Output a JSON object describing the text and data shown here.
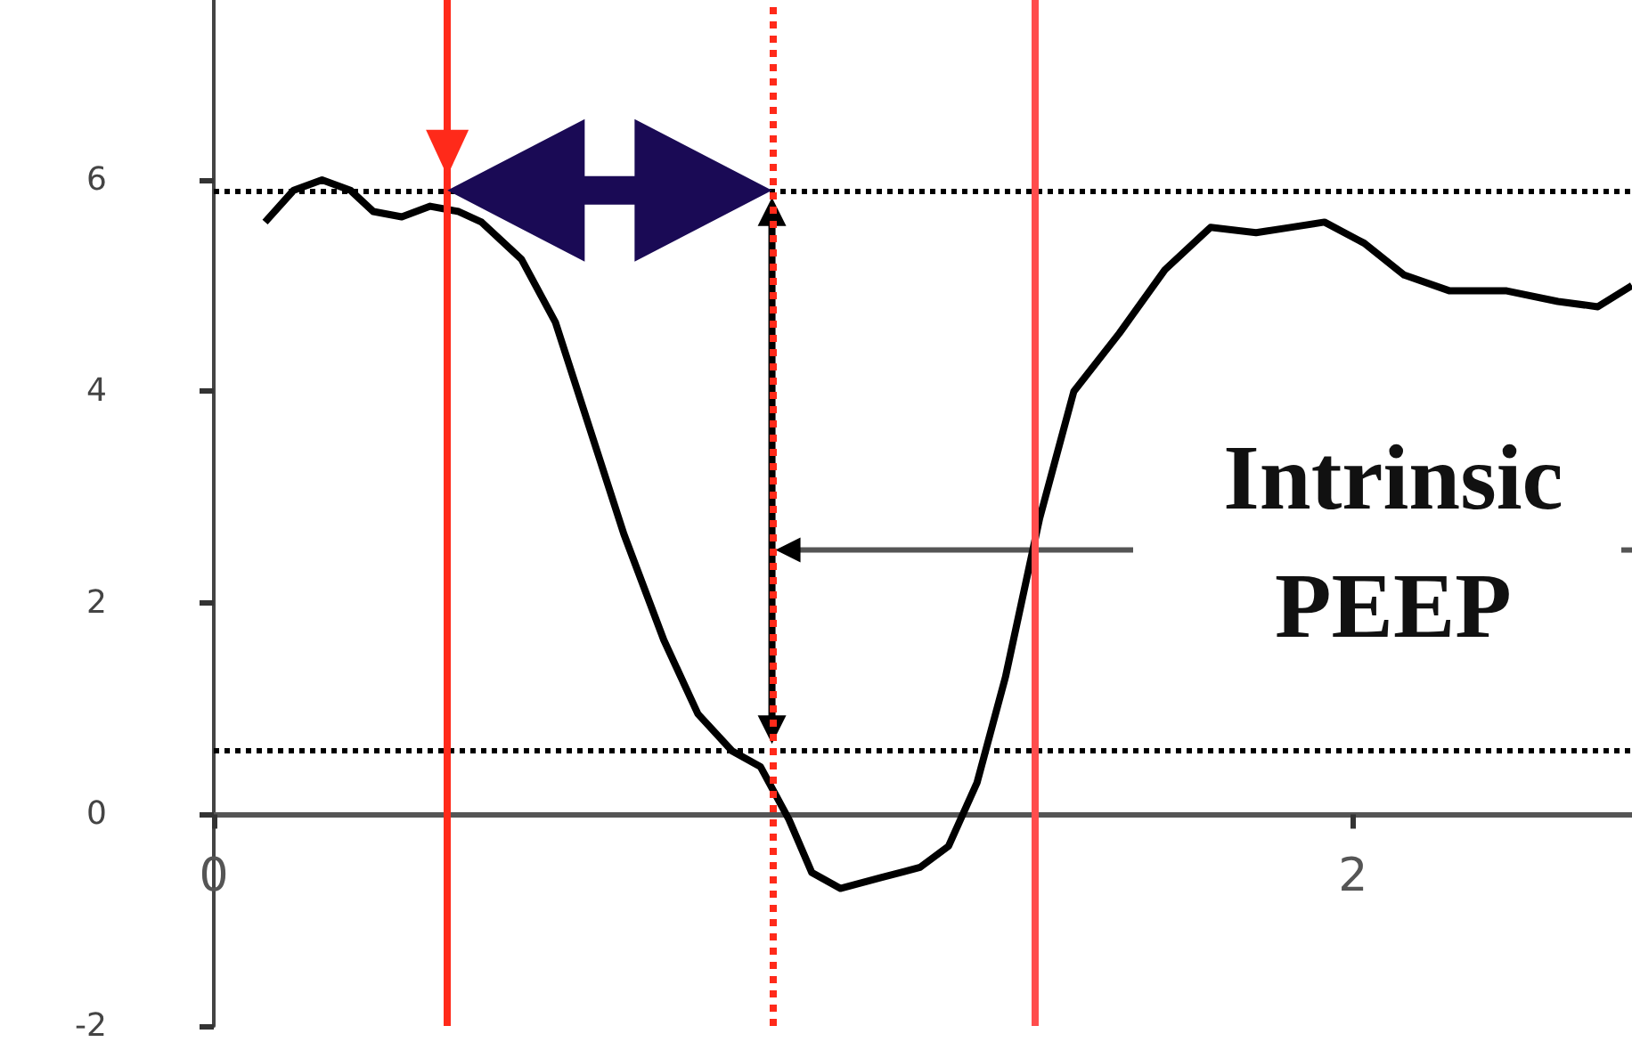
{
  "chart_data": {
    "type": "line",
    "x": [
      0.09,
      0.14,
      0.19,
      0.24,
      0.28,
      0.33,
      0.38,
      0.43,
      0.47,
      0.54,
      0.6,
      0.66,
      0.72,
      0.79,
      0.85,
      0.91,
      0.96,
      1.01,
      1.05,
      1.1,
      1.17,
      1.24,
      1.29,
      1.34,
      1.39,
      1.45,
      1.51,
      1.59,
      1.67,
      1.75,
      1.83,
      1.89,
      1.95,
      2.02,
      2.09,
      2.17,
      2.27,
      2.36,
      2.43,
      2.49
    ],
    "series": [
      {
        "color": "#000000",
        "values": [
          5.6,
          5.9,
          6.0,
          5.9,
          5.7,
          5.65,
          5.75,
          5.7,
          5.6,
          5.25,
          4.65,
          3.65,
          2.65,
          1.65,
          0.95,
          0.6,
          0.45,
          -0.05,
          -0.55,
          -0.7,
          -0.6,
          -0.5,
          -0.3,
          0.3,
          1.3,
          2.8,
          4.0,
          4.55,
          5.15,
          5.55,
          5.5,
          5.55,
          5.6,
          5.4,
          5.1,
          4.95,
          4.95,
          4.85,
          4.8,
          5.0
        ]
      }
    ],
    "xlim": [
      0,
      2.49
    ],
    "xticks": [
      0,
      2
    ],
    "ylim": [
      -2,
      7.7
    ],
    "yticks": [
      -2,
      0,
      2,
      4,
      6
    ],
    "marker": "none",
    "line_style": "solid",
    "ref_lines": [
      {
        "axis": "y",
        "value": 5.9,
        "color": "#000000",
        "line_style": "dotted"
      },
      {
        "axis": "y",
        "value": 0.6,
        "color": "#000000",
        "line_style": "dotted"
      },
      {
        "axis": "x",
        "value": 0.41,
        "color": "#ff2a1a",
        "line_style": "solid"
      },
      {
        "axis": "x",
        "value": 0.98,
        "color": "#ff2a1a",
        "line_style": "dotted"
      },
      {
        "axis": "x",
        "value": 1.44,
        "color": "#ff4d4d",
        "line_style": "solid"
      }
    ],
    "annotations": [
      {
        "text": "Intrinsic\nPEEP",
        "x": 0.98,
        "y": 2.5
      }
    ]
  }
}
